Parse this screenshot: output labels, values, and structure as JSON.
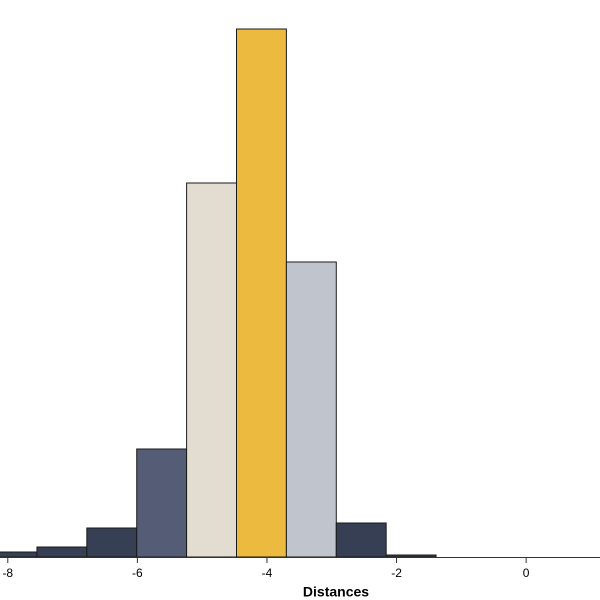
{
  "chart_data": {
    "type": "histogram",
    "x_label": "Distances",
    "bins": [
      -8.32,
      -7.55,
      -6.78,
      -6.01,
      -5.24,
      -4.47,
      -3.7,
      -2.93,
      -2.16,
      -1.39
    ],
    "values": [
      5,
      10,
      29,
      108,
      374,
      528,
      295,
      34,
      2
    ],
    "colors": [
      "#363f54",
      "#363f54",
      "#363f54",
      "#545d75",
      "#e2ddd0",
      "#ecba3e",
      "#c0c4cc",
      "#363f54",
      "#363f54"
    ],
    "xlim": [
      -8.12,
      1.14
    ],
    "ylim": [
      0,
      540
    ],
    "xticks": [
      -8,
      -6,
      -4,
      -2,
      0
    ]
  }
}
